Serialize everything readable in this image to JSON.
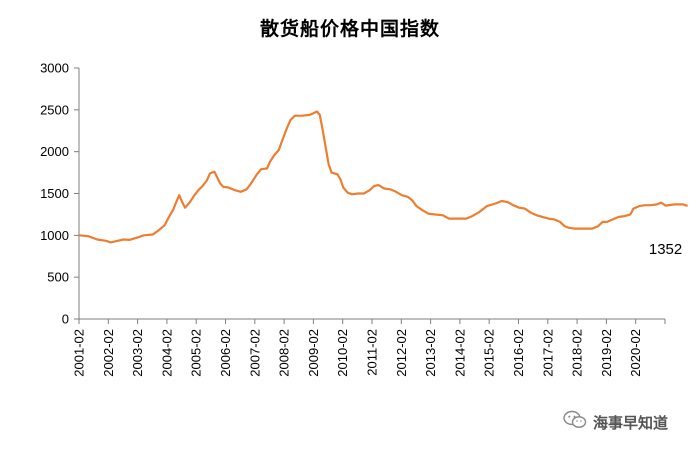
{
  "chart_data": {
    "type": "line",
    "title": "散货船价格中国指数",
    "xlabel": "",
    "ylabel": "",
    "ylim": [
      0,
      3000
    ],
    "yticks": [
      0,
      500,
      1000,
      1500,
      2000,
      2500,
      3000
    ],
    "xticks": [
      "2001-02",
      "2002-02",
      "2003-02",
      "2004-02",
      "2005-02",
      "2006-02",
      "2007-02",
      "2008-02",
      "2009-02",
      "2010-02",
      "2011-02",
      "2012-02",
      "2013-02",
      "2014-02",
      "2015-02",
      "2016-02",
      "2017-02",
      "2018-02",
      "2019-02",
      "2020-02"
    ],
    "x_start": 2001.08,
    "x_end": 2020.08,
    "grid": false,
    "legend": "none",
    "line_color": "#ED7D31",
    "end_label": "1352",
    "series": [
      {
        "points": [
          [
            2001.08,
            1000
          ],
          [
            2001.4,
            990
          ],
          [
            2001.7,
            950
          ],
          [
            2002.0,
            935
          ],
          [
            2002.15,
            915
          ],
          [
            2002.4,
            935
          ],
          [
            2002.6,
            950
          ],
          [
            2002.8,
            945
          ],
          [
            2003.08,
            975
          ],
          [
            2003.3,
            1000
          ],
          [
            2003.6,
            1010
          ],
          [
            2003.8,
            1060
          ],
          [
            2004.0,
            1120
          ],
          [
            2004.15,
            1220
          ],
          [
            2004.3,
            1310
          ],
          [
            2004.4,
            1400
          ],
          [
            2004.5,
            1480
          ],
          [
            2004.6,
            1400
          ],
          [
            2004.7,
            1330
          ],
          [
            2004.85,
            1390
          ],
          [
            2005.0,
            1470
          ],
          [
            2005.15,
            1540
          ],
          [
            2005.3,
            1590
          ],
          [
            2005.45,
            1660
          ],
          [
            2005.55,
            1740
          ],
          [
            2005.7,
            1760
          ],
          [
            2005.8,
            1690
          ],
          [
            2005.9,
            1620
          ],
          [
            2006.0,
            1580
          ],
          [
            2006.2,
            1570
          ],
          [
            2006.4,
            1540
          ],
          [
            2006.6,
            1520
          ],
          [
            2006.8,
            1550
          ],
          [
            2006.95,
            1620
          ],
          [
            2007.15,
            1730
          ],
          [
            2007.3,
            1790
          ],
          [
            2007.5,
            1800
          ],
          [
            2007.6,
            1880
          ],
          [
            2007.75,
            1960
          ],
          [
            2007.9,
            2020
          ],
          [
            2008.0,
            2120
          ],
          [
            2008.15,
            2260
          ],
          [
            2008.3,
            2380
          ],
          [
            2008.45,
            2430
          ],
          [
            2008.7,
            2430
          ],
          [
            2008.95,
            2440
          ],
          [
            2009.08,
            2460
          ],
          [
            2009.2,
            2480
          ],
          [
            2009.3,
            2440
          ],
          [
            2009.4,
            2250
          ],
          [
            2009.5,
            2050
          ],
          [
            2009.6,
            1850
          ],
          [
            2009.7,
            1750
          ],
          [
            2009.9,
            1730
          ],
          [
            2010.0,
            1670
          ],
          [
            2010.1,
            1570
          ],
          [
            2010.25,
            1510
          ],
          [
            2010.4,
            1490
          ],
          [
            2010.6,
            1500
          ],
          [
            2010.8,
            1500
          ],
          [
            2011.0,
            1540
          ],
          [
            2011.15,
            1590
          ],
          [
            2011.3,
            1600
          ],
          [
            2011.5,
            1560
          ],
          [
            2011.7,
            1550
          ],
          [
            2011.9,
            1520
          ],
          [
            2012.1,
            1480
          ],
          [
            2012.3,
            1460
          ],
          [
            2012.45,
            1420
          ],
          [
            2012.6,
            1350
          ],
          [
            2012.8,
            1300
          ],
          [
            2013.0,
            1260
          ],
          [
            2013.2,
            1250
          ],
          [
            2013.5,
            1240
          ],
          [
            2013.7,
            1200
          ],
          [
            2014.0,
            1200
          ],
          [
            2014.3,
            1200
          ],
          [
            2014.5,
            1230
          ],
          [
            2014.75,
            1280
          ],
          [
            2015.0,
            1350
          ],
          [
            2015.3,
            1380
          ],
          [
            2015.5,
            1410
          ],
          [
            2015.7,
            1400
          ],
          [
            2015.9,
            1360
          ],
          [
            2016.1,
            1330
          ],
          [
            2016.3,
            1320
          ],
          [
            2016.5,
            1270
          ],
          [
            2016.7,
            1240
          ],
          [
            2016.9,
            1220
          ],
          [
            2017.1,
            1200
          ],
          [
            2017.3,
            1190
          ],
          [
            2017.5,
            1160
          ],
          [
            2017.65,
            1110
          ],
          [
            2017.8,
            1090
          ],
          [
            2018.0,
            1080
          ],
          [
            2018.3,
            1080
          ],
          [
            2018.6,
            1080
          ],
          [
            2018.8,
            1110
          ],
          [
            2018.95,
            1160
          ],
          [
            2019.1,
            1160
          ],
          [
            2019.3,
            1190
          ],
          [
            2019.5,
            1220
          ],
          [
            2019.7,
            1230
          ],
          [
            2019.9,
            1250
          ],
          [
            2020.0,
            1320
          ],
          [
            2020.2,
            1350
          ],
          [
            2020.4,
            1360
          ],
          [
            2020.6,
            1360
          ],
          [
            2020.8,
            1370
          ],
          [
            2020.95,
            1390
          ],
          [
            2021.1,
            1355
          ],
          [
            2021.4,
            1370
          ],
          [
            2021.7,
            1370
          ],
          [
            2021.85,
            1352
          ]
        ]
      }
    ]
  },
  "watermark": {
    "text": "海事早知道",
    "icon": "wechat-icon"
  }
}
